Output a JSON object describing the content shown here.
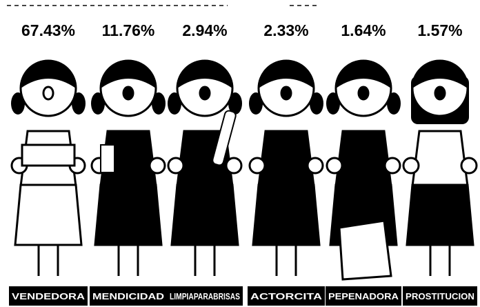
{
  "chart_data": {
    "type": "pictogram",
    "categories": [
      "VENDEDORA",
      "MENDICIDAD",
      "LIMPIAPARABRISAS",
      "ACTORCITA",
      "PEPENADORA",
      "PROSTITUCION"
    ],
    "values": [
      67.43,
      11.76,
      2.94,
      2.33,
      1.64,
      1.57
    ],
    "value_labels": [
      "67.43%",
      "11.76%",
      "2.94%",
      "2.33%",
      "1.64%",
      "1.57%"
    ],
    "color": "#000000"
  }
}
